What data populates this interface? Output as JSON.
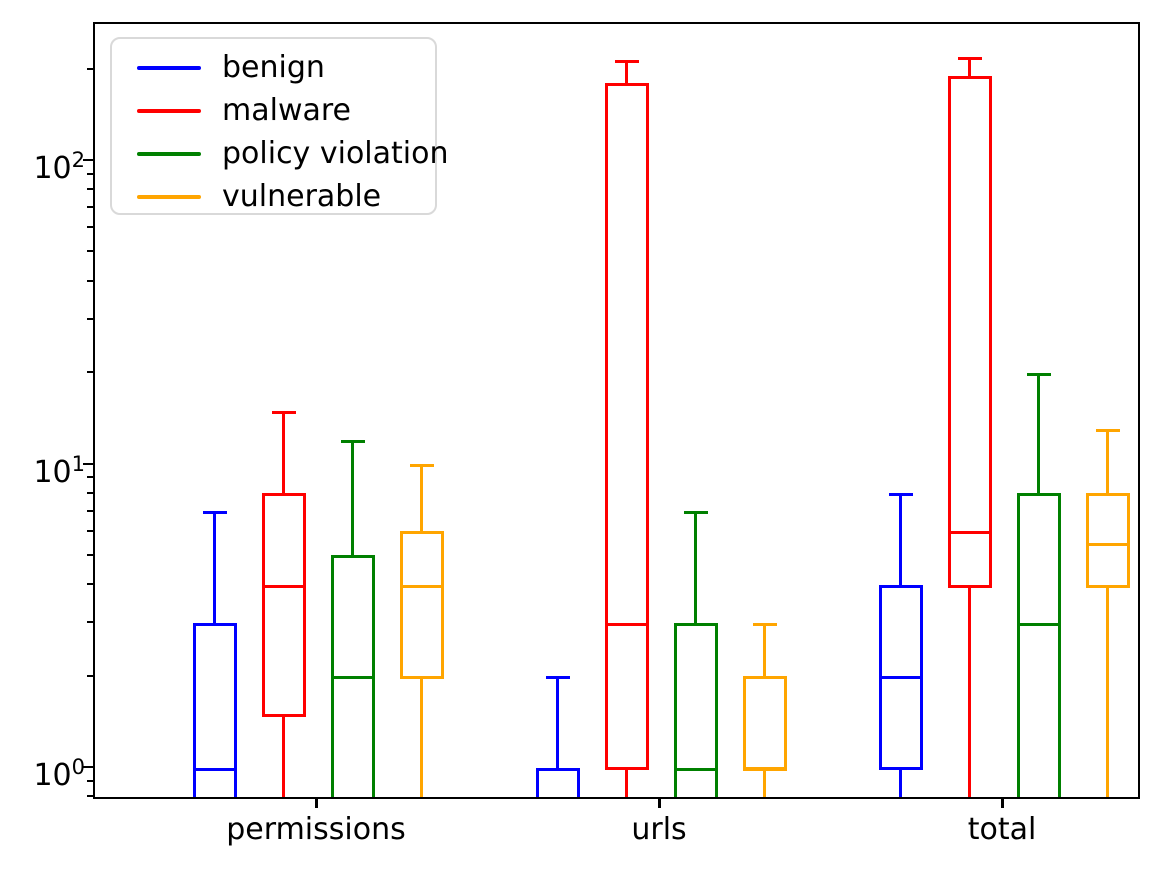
{
  "chart_data": {
    "type": "boxplot",
    "orientation": "vertical",
    "yscale": "log",
    "ylim": [
      0.78,
      280
    ],
    "grid": false,
    "title": "",
    "xlabel": "",
    "ylabel": "",
    "categories": [
      "permissions",
      "urls",
      "total"
    ],
    "y_major_ticks": [
      {
        "base": "10",
        "exp": "0",
        "value": 1
      },
      {
        "base": "10",
        "exp": "1",
        "value": 10
      },
      {
        "base": "10",
        "exp": "2",
        "value": 100
      }
    ],
    "legend": {
      "position": "upper left",
      "entries": [
        "benign",
        "malware",
        "policy violation",
        "vulnerable"
      ]
    },
    "clip_note": "values of 0 extend below the log-axis lower limit and are clipped",
    "series": [
      {
        "name": "benign",
        "color": "#0000ff",
        "boxes": [
          {
            "category": "permissions",
            "whisker_low": 0,
            "q1": 0,
            "median": 1,
            "q3": 3,
            "whisker_high": 7
          },
          {
            "category": "urls",
            "whisker_low": 0,
            "q1": 0,
            "median": 1,
            "q3": 1,
            "whisker_high": 2
          },
          {
            "category": "total",
            "whisker_low": 0,
            "q1": 1,
            "median": 2,
            "q3": 4,
            "whisker_high": 8
          }
        ]
      },
      {
        "name": "malware",
        "color": "#ff0000",
        "boxes": [
          {
            "category": "permissions",
            "whisker_low": 0,
            "q1": 1.5,
            "median": 4,
            "q3": 8,
            "whisker_high": 15
          },
          {
            "category": "urls",
            "whisker_low": 0,
            "q1": 1,
            "median": 3,
            "q3": 180,
            "whisker_high": 215
          },
          {
            "category": "total",
            "whisker_low": 0,
            "q1": 4,
            "median": 6,
            "q3": 190,
            "whisker_high": 220
          }
        ]
      },
      {
        "name": "policy violation",
        "color": "#008000",
        "boxes": [
          {
            "category": "permissions",
            "whisker_low": 0,
            "q1": 0,
            "median": 2,
            "q3": 5,
            "whisker_high": 12
          },
          {
            "category": "urls",
            "whisker_low": 0,
            "q1": 0,
            "median": 1,
            "q3": 3,
            "whisker_high": 7
          },
          {
            "category": "total",
            "whisker_low": 0,
            "q1": 0,
            "median": 3,
            "q3": 8,
            "whisker_high": 20
          }
        ]
      },
      {
        "name": "vulnerable",
        "color": "#ffa500",
        "boxes": [
          {
            "category": "permissions",
            "whisker_low": 0,
            "q1": 2,
            "median": 4,
            "q3": 6,
            "whisker_high": 10
          },
          {
            "category": "urls",
            "whisker_low": 0,
            "q1": 1,
            "median": 1,
            "q3": 2,
            "whisker_high": 3
          },
          {
            "category": "total",
            "whisker_low": 0,
            "q1": 4,
            "median": 5.5,
            "q3": 8,
            "whisker_high": 13
          }
        ]
      }
    ]
  }
}
